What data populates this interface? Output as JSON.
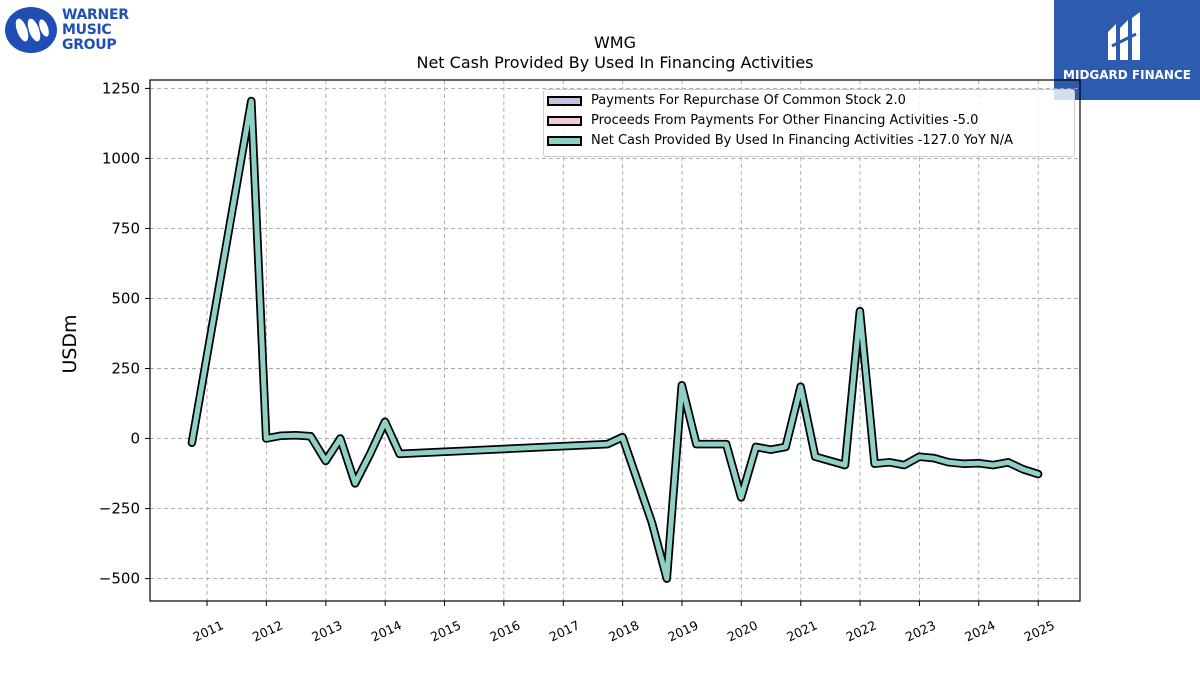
{
  "logos": {
    "left": {
      "lines": [
        "WARNER",
        "MUSIC",
        "GROUP"
      ]
    },
    "right": {
      "name": "MIDGARD FINANCE"
    }
  },
  "chart_data": {
    "type": "line",
    "title": "WMG",
    "subtitle": "Net Cash Provided By Used In Financing Activities",
    "ylabel": "USDm",
    "xlabel": "",
    "ylim": [
      -580,
      1280
    ],
    "xlim": [
      "2010-01-15",
      "2025-09-15"
    ],
    "yticks": [
      -500,
      -250,
      0,
      250,
      500,
      750,
      1000,
      1250
    ],
    "xticks": [
      "2011",
      "2012",
      "2013",
      "2014",
      "2015",
      "2016",
      "2017",
      "2018",
      "2019",
      "2020",
      "2021",
      "2022",
      "2023",
      "2024",
      "2025"
    ],
    "grid": true,
    "legend_position": "top-right",
    "legend": [
      {
        "label": "Payments For Repurchase Of Common Stock  2.0",
        "color": "#c8c2e2"
      },
      {
        "label": "Proceeds From Payments For Other Financing Activities  -5.0",
        "color": "#f5c9d6"
      },
      {
        "label": "Net Cash Provided By Used In Financing Activities  -127.0 YoY N/A",
        "color": "#8fd0c6"
      }
    ],
    "series": [
      {
        "name": "Net Cash Provided By Used In Financing Activities",
        "color": "#8fd0c6",
        "points": [
          [
            "2010-09-30",
            -15
          ],
          [
            "2011-09-30",
            1205
          ],
          [
            "2011-12-31",
            0
          ],
          [
            "2012-03-31",
            10
          ],
          [
            "2012-06-30",
            12
          ],
          [
            "2012-09-30",
            8
          ],
          [
            "2012-12-31",
            -80
          ],
          [
            "2013-03-31",
            0
          ],
          [
            "2013-06-30",
            -160
          ],
          [
            "2013-09-30",
            -55
          ],
          [
            "2013-12-31",
            60
          ],
          [
            "2014-03-31",
            -55
          ],
          [
            "2017-09-30",
            -20
          ],
          [
            "2017-12-31",
            5
          ],
          [
            "2018-06-30",
            -300
          ],
          [
            "2018-09-30",
            -500
          ],
          [
            "2018-12-31",
            190
          ],
          [
            "2019-03-31",
            -20
          ],
          [
            "2019-06-30",
            -20
          ],
          [
            "2019-09-30",
            -20
          ],
          [
            "2019-12-31",
            -210
          ],
          [
            "2020-03-31",
            -30
          ],
          [
            "2020-06-30",
            -40
          ],
          [
            "2020-09-30",
            -30
          ],
          [
            "2020-12-31",
            185
          ],
          [
            "2021-03-31",
            -65
          ],
          [
            "2021-06-30",
            -80
          ],
          [
            "2021-09-30",
            -95
          ],
          [
            "2021-12-31",
            455
          ],
          [
            "2022-03-31",
            -90
          ],
          [
            "2022-06-30",
            -85
          ],
          [
            "2022-09-30",
            -95
          ],
          [
            "2022-12-31",
            -65
          ],
          [
            "2023-03-31",
            -70
          ],
          [
            "2023-06-30",
            -85
          ],
          [
            "2023-09-30",
            -90
          ],
          [
            "2023-12-31",
            -88
          ],
          [
            "2024-03-31",
            -95
          ],
          [
            "2024-06-30",
            -85
          ],
          [
            "2024-09-30",
            -110
          ],
          [
            "2024-12-31",
            -127
          ]
        ]
      }
    ]
  }
}
